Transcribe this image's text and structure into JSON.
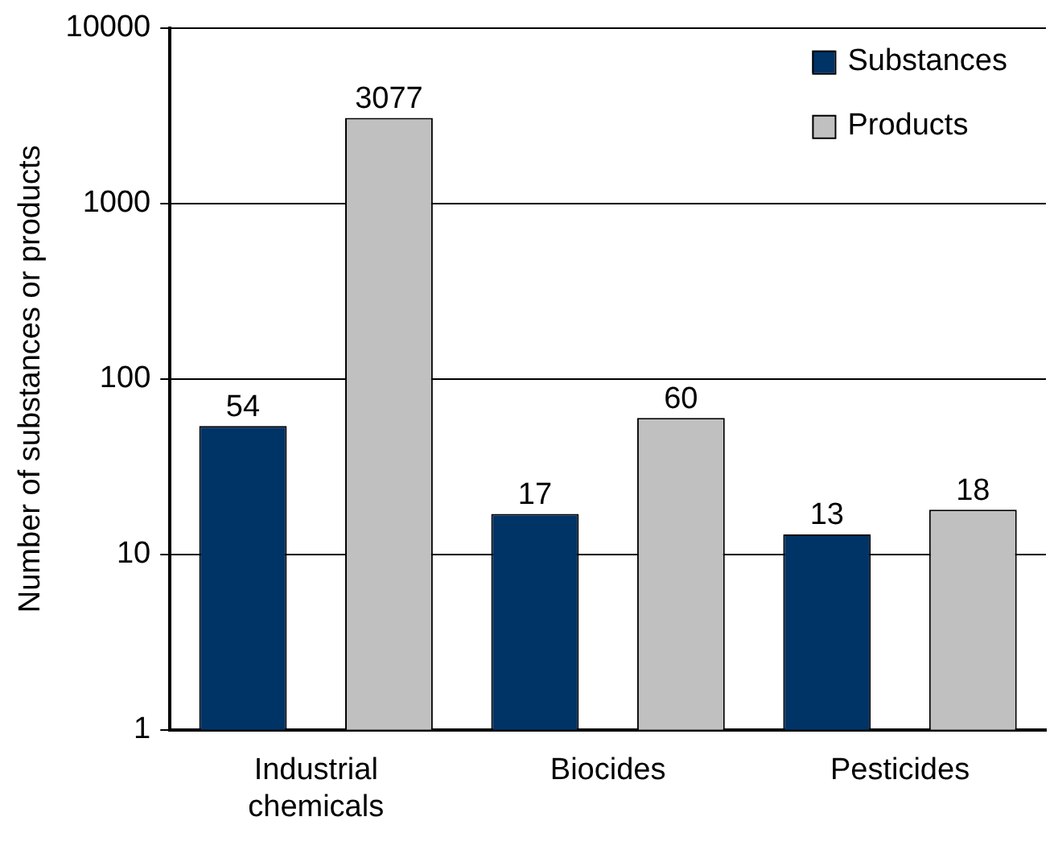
{
  "chart_data": {
    "type": "bar",
    "ylabel": "Number of substances or products",
    "categories": [
      "Industrial chemicals",
      "Biocides",
      "Pesticides"
    ],
    "series": [
      {
        "name": "Substances",
        "color": "#003366",
        "values": [
          54,
          17,
          13
        ]
      },
      {
        "name": "Products",
        "color": "#c0c0c0",
        "values": [
          3077,
          60,
          18
        ]
      }
    ],
    "log": "y",
    "ylim": [
      1,
      10000
    ],
    "yticks": [
      1,
      10,
      100,
      1000,
      10000
    ],
    "grid": "y",
    "legend": "top right",
    "data_labels": true
  }
}
